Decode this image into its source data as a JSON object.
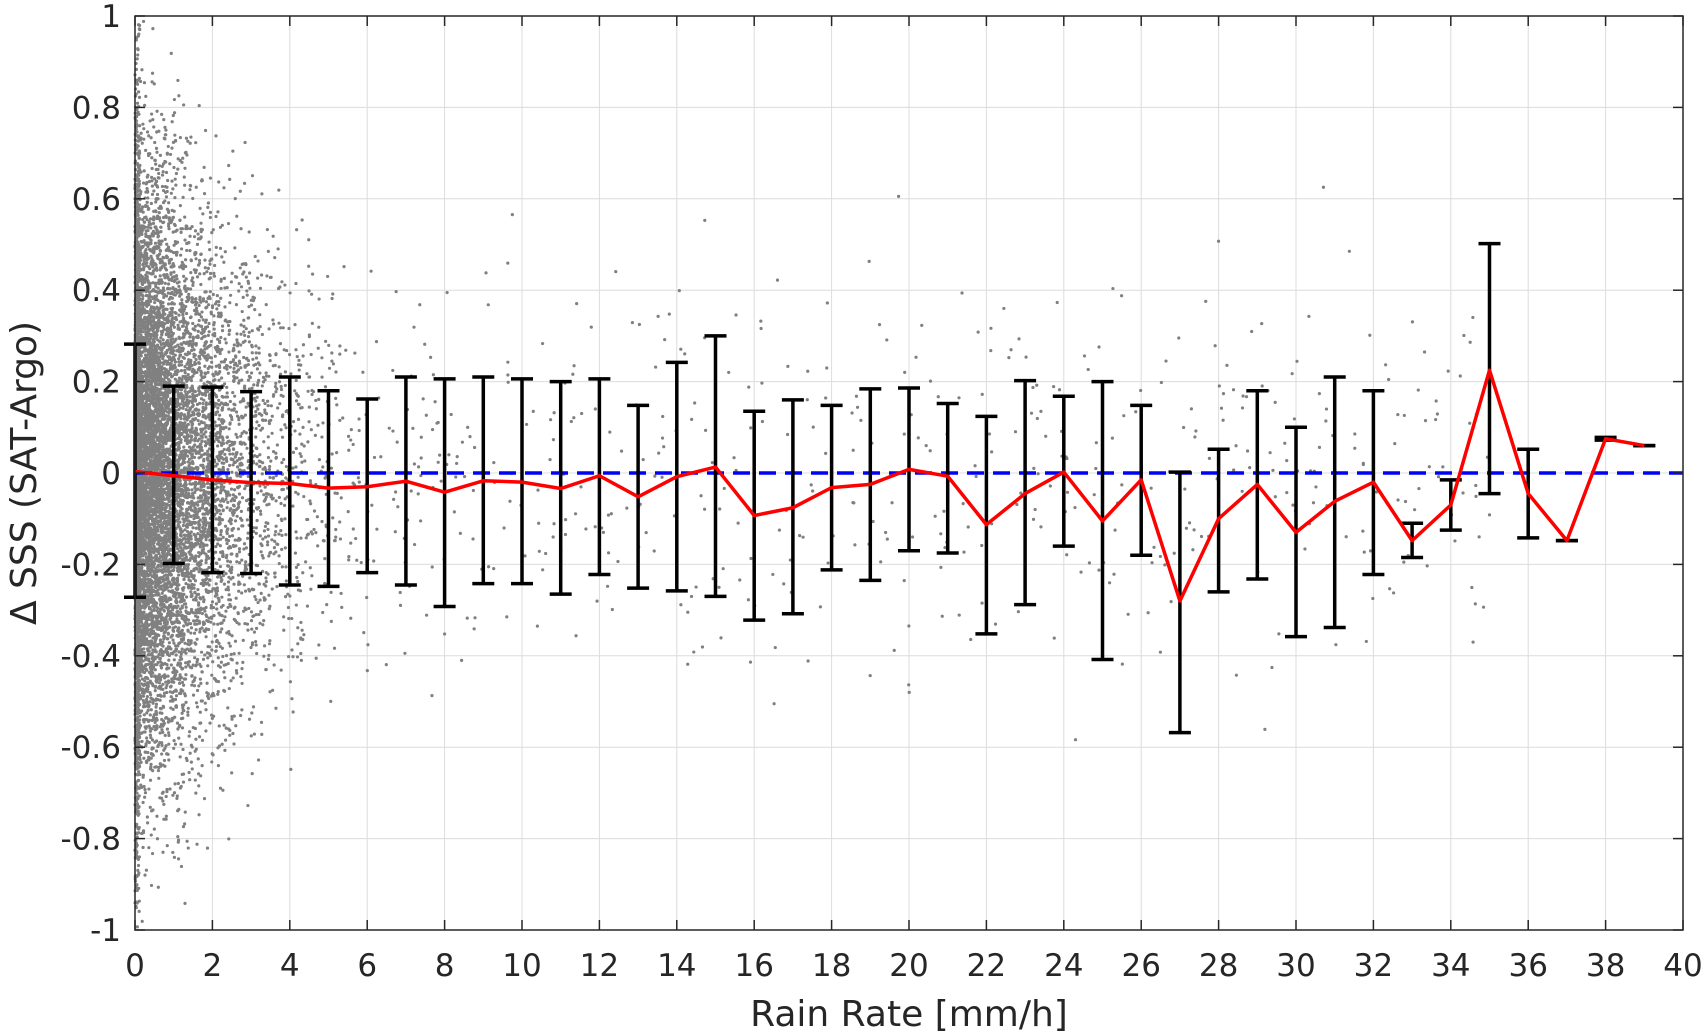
{
  "chart_data": {
    "type": "scatter",
    "title": "",
    "xlabel": "Rain Rate [mm/h]",
    "ylabel": "Δ SSS (SAT-Argo)",
    "xlim": [
      0,
      40
    ],
    "ylim": [
      -1,
      1
    ],
    "x_ticks": [
      "0",
      "2",
      "4",
      "6",
      "8",
      "10",
      "12",
      "14",
      "16",
      "18",
      "20",
      "22",
      "24",
      "26",
      "28",
      "30",
      "32",
      "34",
      "36",
      "38",
      "40"
    ],
    "y_ticks": [
      "-1",
      "-0.8",
      "-0.6",
      "-0.4",
      "-0.2",
      "0",
      "0.2",
      "0.4",
      "0.6",
      "0.8",
      "1"
    ],
    "grid": true,
    "scatter_color": "#808080",
    "mean_line_color": "#ff0000",
    "errorbar_color": "#000000",
    "reference_line": {
      "y": 0,
      "color": "#0000ff",
      "style": "dashed"
    },
    "series": [
      {
        "type": "errorbar-line",
        "x": [
          0,
          1,
          2,
          3,
          4,
          5,
          6,
          7,
          8,
          9,
          10,
          11,
          12,
          13,
          14,
          15,
          16,
          17,
          18,
          19,
          20,
          21,
          22,
          23,
          24,
          25,
          26,
          27,
          28,
          29,
          30,
          31,
          32,
          33,
          34,
          35,
          36,
          37,
          38,
          39
        ],
        "y": [
          0.003,
          -0.006,
          -0.015,
          -0.021,
          -0.023,
          -0.033,
          -0.03,
          -0.018,
          -0.042,
          -0.017,
          -0.02,
          -0.034,
          -0.006,
          -0.052,
          -0.008,
          0.013,
          -0.093,
          -0.076,
          -0.032,
          -0.025,
          0.008,
          -0.007,
          -0.113,
          -0.045,
          0.002,
          -0.105,
          -0.015,
          -0.28,
          -0.1,
          -0.025,
          -0.13,
          -0.062,
          -0.02,
          -0.148,
          -0.07,
          0.225,
          -0.045,
          -0.148,
          0.075,
          0.06
        ],
        "upper": [
          0.282,
          0.19,
          0.188,
          0.178,
          0.21,
          0.18,
          0.162,
          0.21,
          0.206,
          0.21,
          0.206,
          0.2,
          0.206,
          0.148,
          0.242,
          0.3,
          0.135,
          0.16,
          0.148,
          0.184,
          0.186,
          0.152,
          0.124,
          0.202,
          0.168,
          0.2,
          0.148,
          0.002,
          0.052,
          0.18,
          0.1,
          0.21,
          0.18,
          -0.11,
          -0.015,
          0.502,
          0.052,
          -0.148,
          0.078,
          0.06
        ],
        "lower": [
          -0.272,
          -0.198,
          -0.218,
          -0.22,
          -0.245,
          -0.248,
          -0.218,
          -0.245,
          -0.292,
          -0.242,
          -0.242,
          -0.265,
          -0.222,
          -0.252,
          -0.258,
          -0.27,
          -0.322,
          -0.308,
          -0.212,
          -0.235,
          -0.17,
          -0.175,
          -0.352,
          -0.288,
          -0.16,
          -0.408,
          -0.18,
          -0.568,
          -0.26,
          -0.232,
          -0.358,
          -0.338,
          -0.222,
          -0.185,
          -0.125,
          -0.045,
          -0.142,
          -0.148,
          0.072,
          0.06
        ]
      }
    ]
  }
}
